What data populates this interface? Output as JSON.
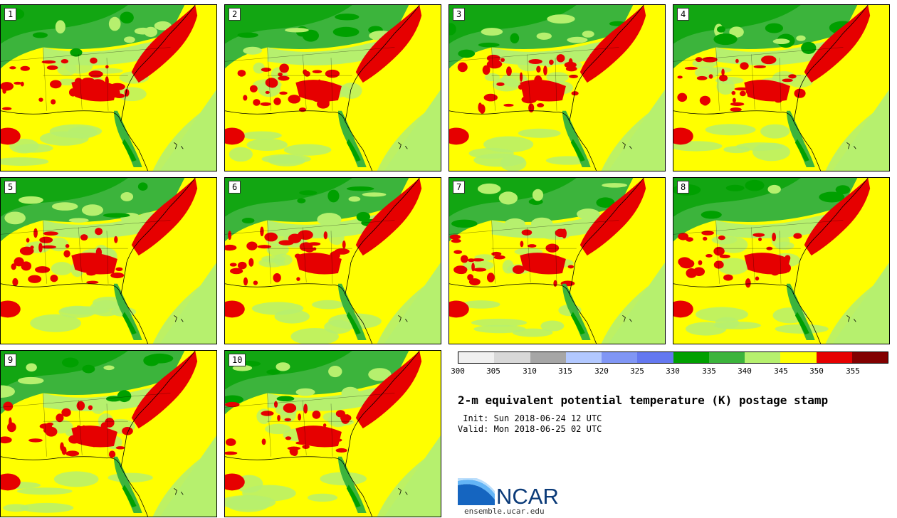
{
  "title": "2-m equivalent potential temperature (K) postage stamp",
  "init": " Init: Sun 2018-06-24 12 UTC",
  "valid": "Valid: Mon 2018-06-25 02 UTC",
  "panels": [
    "1",
    "2",
    "3",
    "4",
    "5",
    "6",
    "7",
    "8",
    "9",
    "10"
  ],
  "colorbar": {
    "colors": [
      "#f0f0f0",
      "#d8d8d8",
      "#a6a6a6",
      "#b2c8ff",
      "#8096f5",
      "#6478f0",
      "#00a000",
      "#3cb43c",
      "#b6f06e",
      "#ffff00",
      "#e60000",
      "#820000"
    ],
    "ticks": [
      "300",
      "305",
      "310",
      "315",
      "320",
      "325",
      "330",
      "335",
      "340",
      "345",
      "350",
      "355"
    ]
  },
  "logo": {
    "name": "NCAR",
    "url": "ensemble.ucar.edu"
  }
}
